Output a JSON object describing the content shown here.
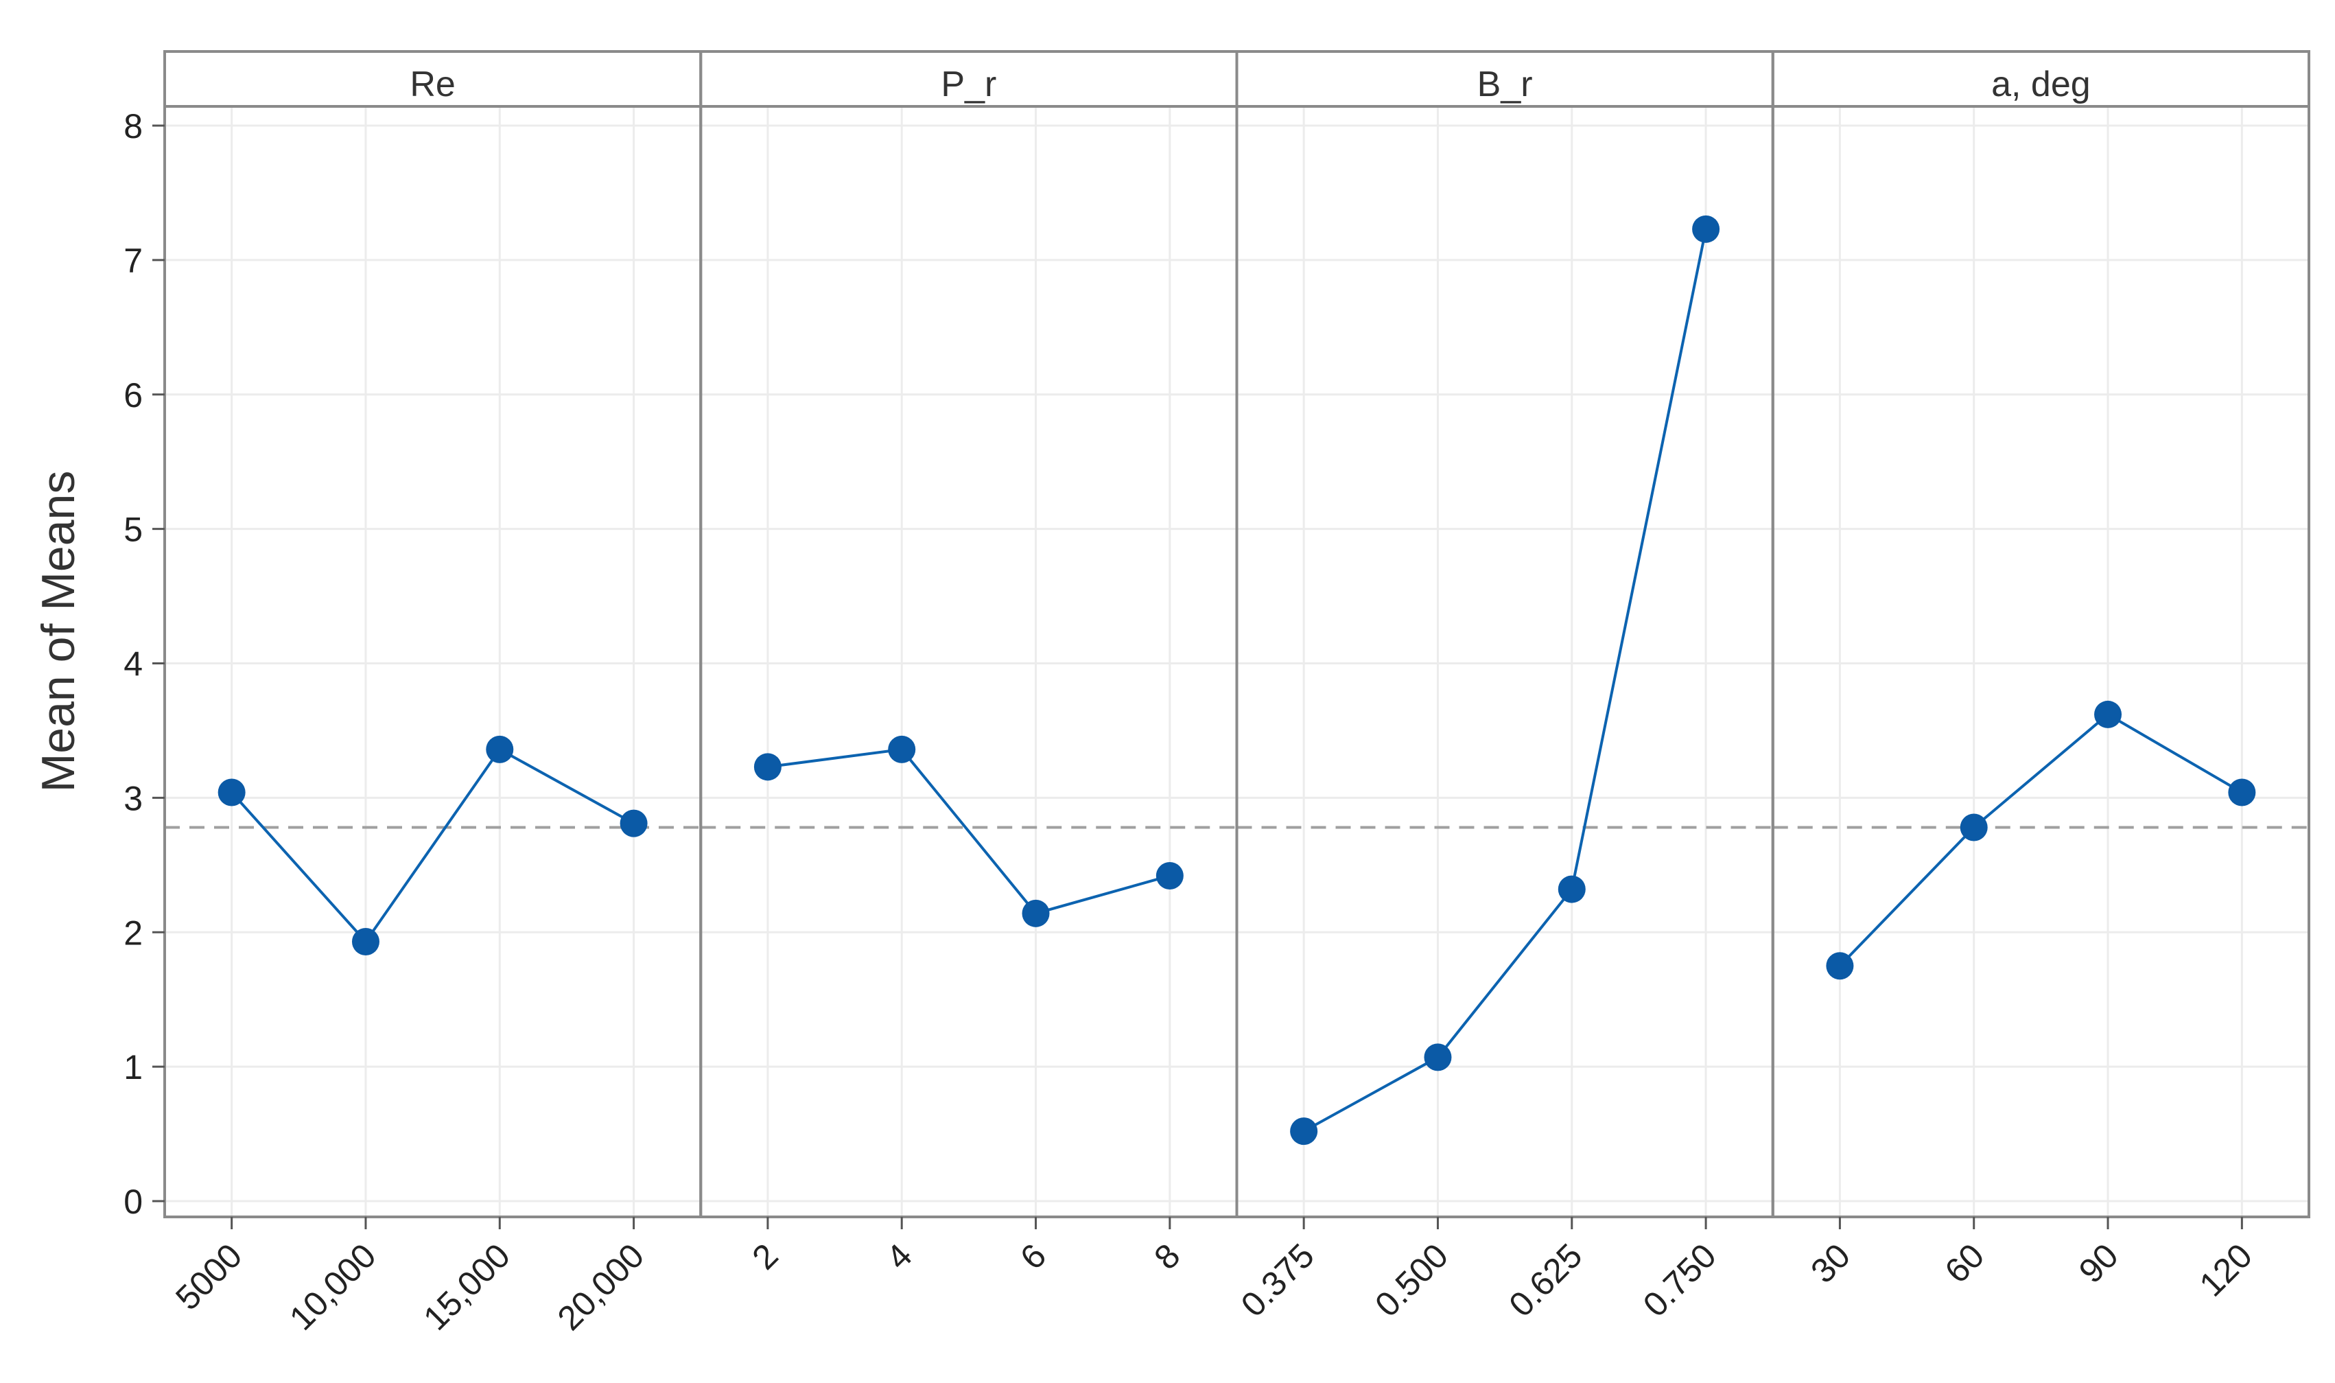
{
  "chart_data": {
    "type": "line",
    "title": "",
    "ylabel": "Mean of Means",
    "ylim": [
      0,
      8
    ],
    "yticks": [
      "0",
      "1",
      "2",
      "3",
      "4",
      "5",
      "6",
      "7",
      "8"
    ],
    "reference_line": 2.78,
    "grid": true,
    "colors": {
      "series": "#0c63b0",
      "marker": "#0b5aa6",
      "reference": "#a0a0a0",
      "panel_border": "#8a8a8a"
    },
    "panels": [
      {
        "name": "Re",
        "categories": [
          "5000",
          "10,000",
          "15,000",
          "20,000"
        ],
        "values": [
          3.04,
          1.93,
          3.36,
          2.81
        ]
      },
      {
        "name": "P_r",
        "categories": [
          "2",
          "4",
          "6",
          "8"
        ],
        "values": [
          3.23,
          3.36,
          2.14,
          2.42
        ]
      },
      {
        "name": "B_r",
        "categories": [
          "0.375",
          "0.500",
          "0.625",
          "0.750"
        ],
        "values": [
          0.52,
          1.07,
          2.32,
          7.23
        ]
      },
      {
        "name": "a, deg",
        "categories": [
          "30",
          "60",
          "90",
          "120"
        ],
        "values": [
          1.75,
          2.78,
          3.62,
          3.04
        ]
      }
    ]
  }
}
